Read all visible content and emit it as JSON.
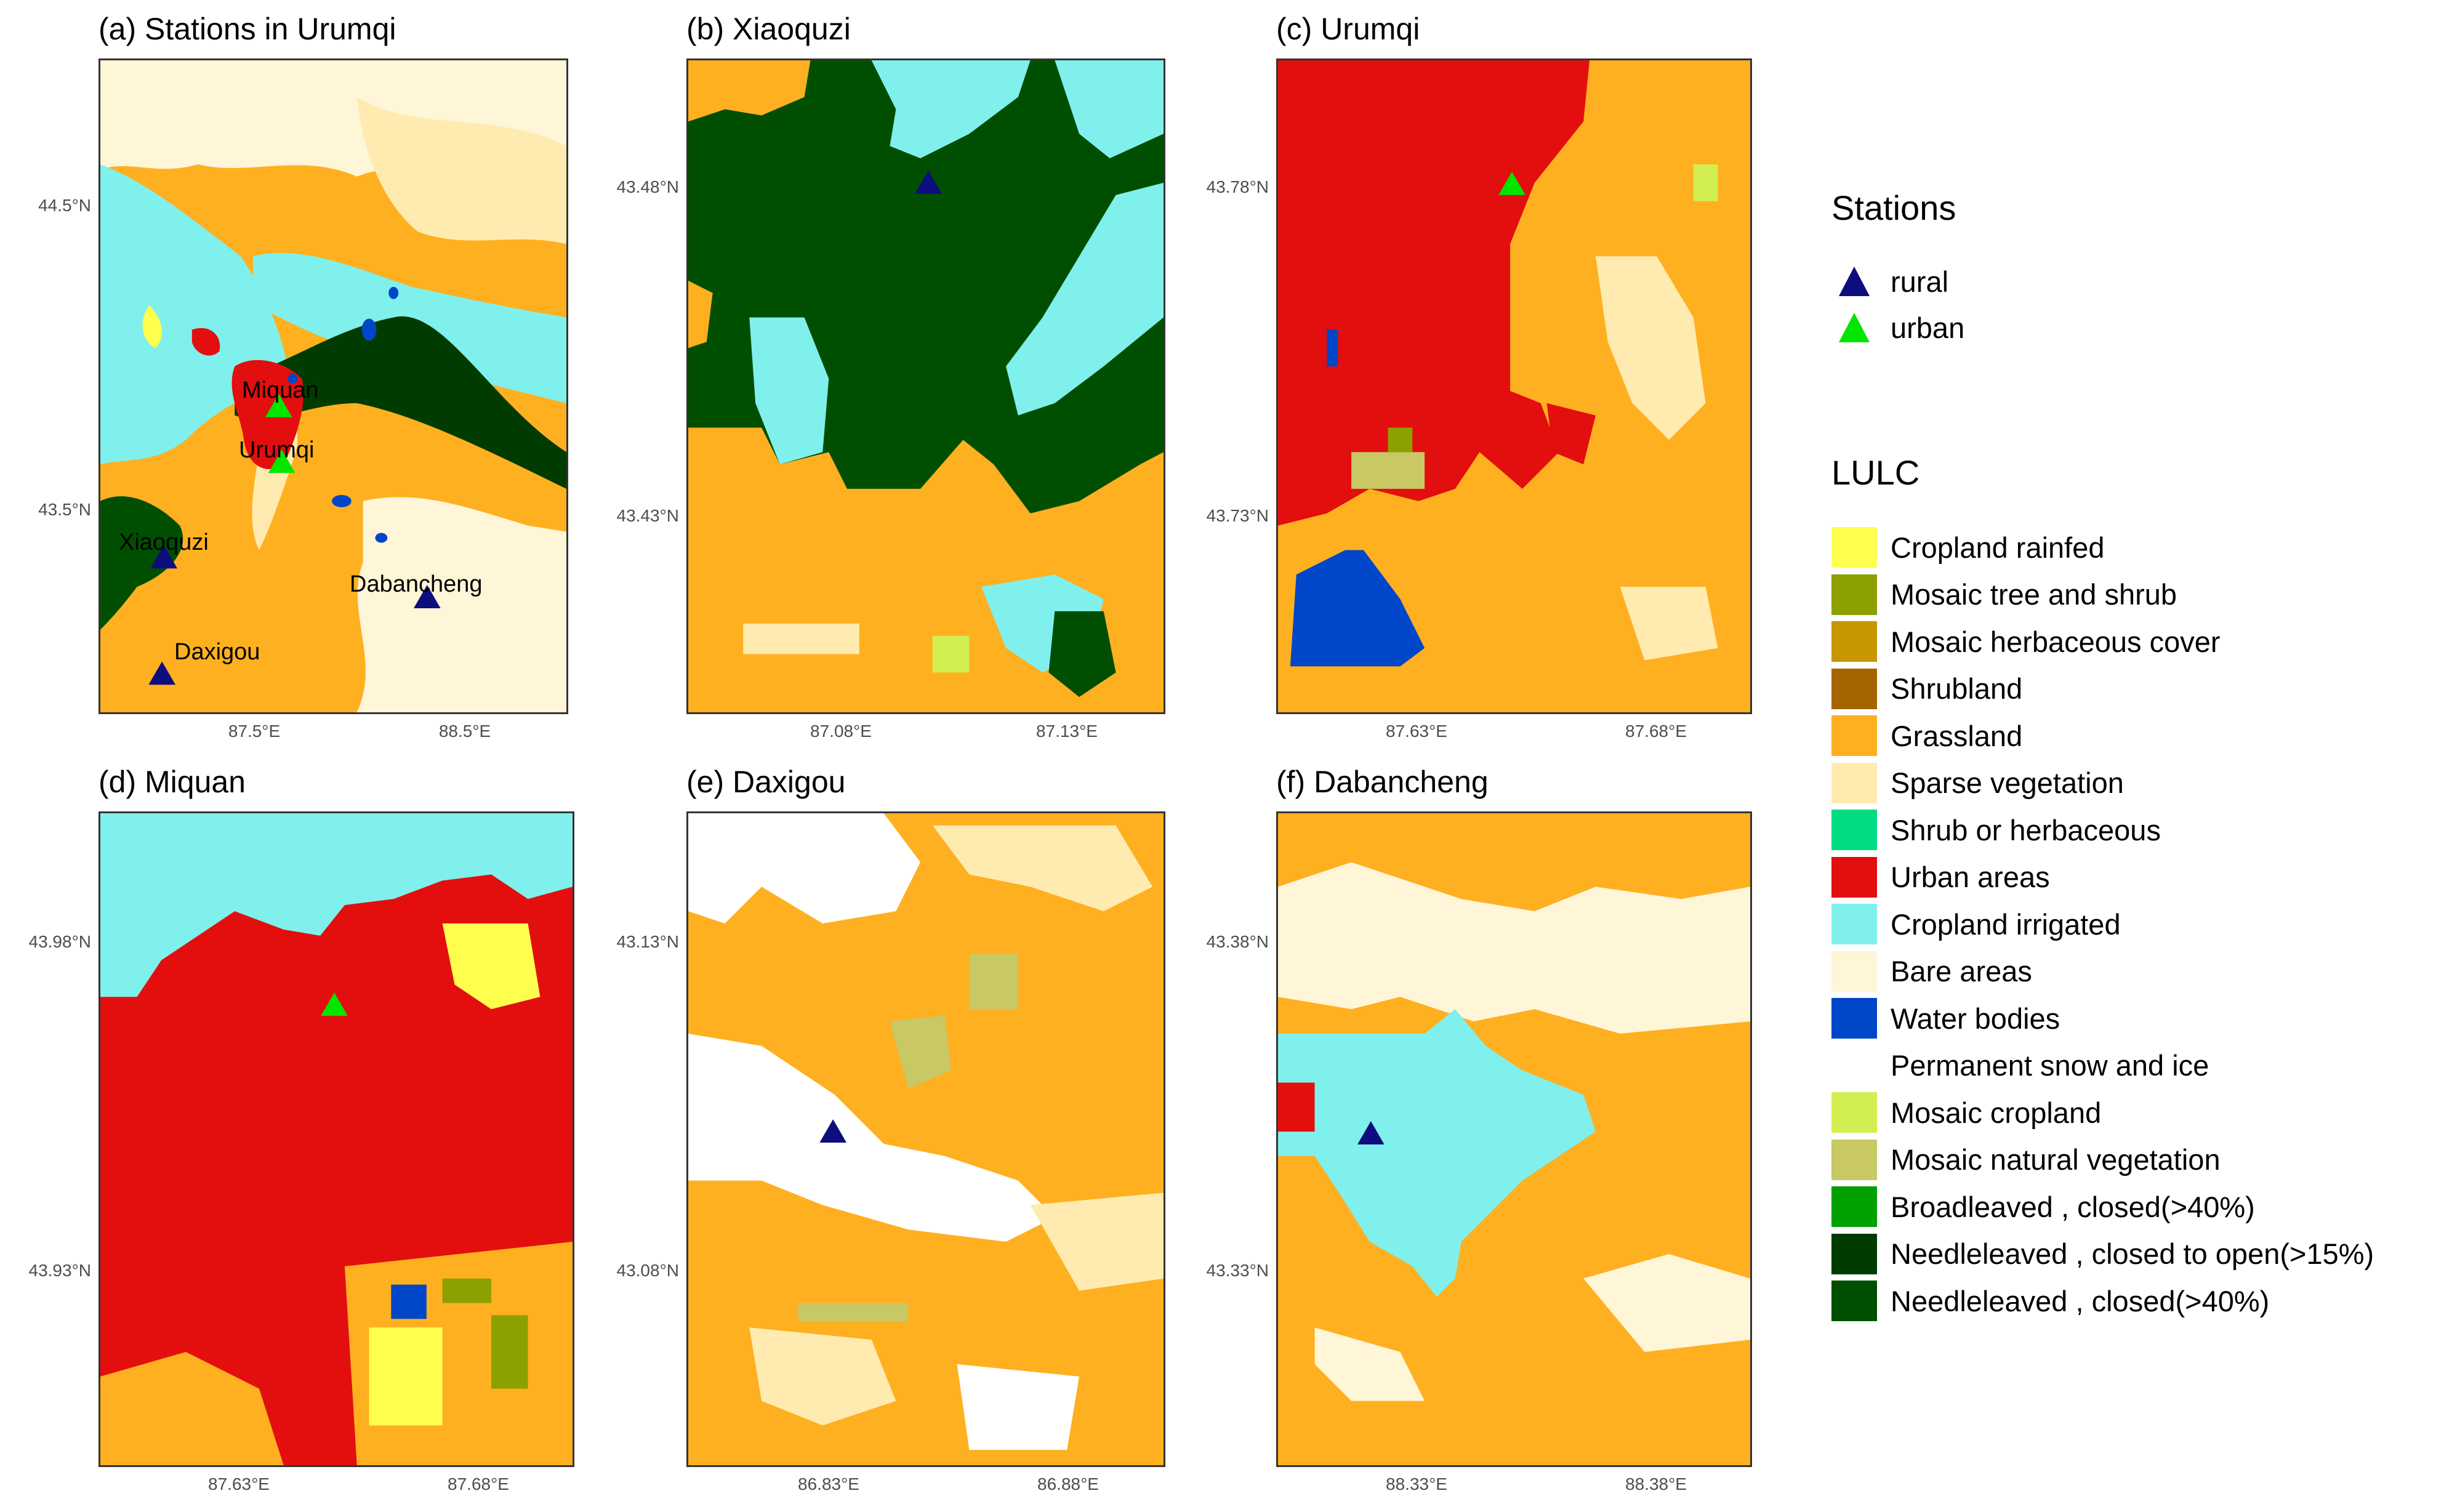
{
  "colors": {
    "cropland_rainfed": "#ffff4d",
    "mosaic_tree_shrub": "#8ca000",
    "mosaic_herbaceous": "#c89600",
    "shrubland": "#a66400",
    "grassland": "#ffb020",
    "sparse_vegetation": "#ffebaf",
    "shrub_herbaceous": "#00dc82",
    "urban": "#e30e0e",
    "cropland_irrigated": "#80f0ec",
    "bare": "#fff5d7",
    "water": "#0046c8",
    "snow": "#ffffff",
    "mosaic_cropland": "#d2ef52",
    "mosaic_natural": "#c8c864",
    "broadleaved": "#00a000",
    "needleleaved_open": "#003c00",
    "needleleaved_closed": "#004f00",
    "rural_marker": "#0d0d7d",
    "urban_marker": "#00e600"
  },
  "panels": {
    "a": {
      "title": "(a) Stations in Urumqi",
      "yticks": [
        "44.5°N",
        "43.5°N"
      ],
      "xticks": [
        "87.5°E",
        "88.5°E"
      ],
      "stations": [
        "Miquan",
        "Urumqi",
        "Xiaoquzi",
        "Dabancheng",
        "Daxigou"
      ]
    },
    "b": {
      "title": "(b) Xiaoquzi",
      "yticks": [
        "43.48°N",
        "43.43°N"
      ],
      "xticks": [
        "87.08°E",
        "87.13°E"
      ]
    },
    "c": {
      "title": "(c) Urumqi",
      "yticks": [
        "43.78°N",
        "43.73°N"
      ],
      "xticks": [
        "87.63°E",
        "87.68°E"
      ]
    },
    "d": {
      "title": "(d) Miquan",
      "yticks": [
        "43.98°N",
        "43.93°N"
      ],
      "xticks": [
        "87.63°E",
        "87.68°E"
      ]
    },
    "e": {
      "title": "(e) Daxigou",
      "yticks": [
        "43.13°N",
        "43.08°N"
      ],
      "xticks": [
        "86.83°E",
        "86.88°E"
      ]
    },
    "f": {
      "title": "(f) Dabancheng",
      "yticks": [
        "43.38°N",
        "43.33°N"
      ],
      "xticks": [
        "88.33°E",
        "88.38°E"
      ]
    }
  },
  "legend": {
    "stations_title": "Stations",
    "stations": [
      {
        "label": "rural",
        "color": "#0d0d7d"
      },
      {
        "label": "urban",
        "color": "#00e600"
      }
    ],
    "lulc_title": "LULC",
    "lulc": [
      {
        "label": "Cropland rainfed",
        "color": "#ffff4d"
      },
      {
        "label": "Mosaic tree and shrub",
        "color": "#8ca000"
      },
      {
        "label": "Mosaic herbaceous cover",
        "color": "#c89600"
      },
      {
        "label": "Shrubland",
        "color": "#a66400"
      },
      {
        "label": "Grassland",
        "color": "#ffb020"
      },
      {
        "label": "Sparse vegetation",
        "color": "#ffebaf"
      },
      {
        "label": "Shrub or herbaceous",
        "color": "#00dc82"
      },
      {
        "label": "Urban areas",
        "color": "#e30e0e"
      },
      {
        "label": "Cropland irrigated",
        "color": "#80f0ec"
      },
      {
        "label": "Bare areas",
        "color": "#fff5d7"
      },
      {
        "label": "Water bodies",
        "color": "#0046c8"
      },
      {
        "label": "Permanent snow and ice",
        "color": "#ffffff"
      },
      {
        "label": "Mosaic cropland",
        "color": "#d2ef52"
      },
      {
        "label": "Mosaic natural vegetation",
        "color": "#c8c864"
      },
      {
        "label": "Broadleaved , closed(>40%)",
        "color": "#00a000"
      },
      {
        "label": "Needleleaved , closed to open(>15%)",
        "color": "#003c00"
      },
      {
        "label": "Needleleaved , closed(>40%)",
        "color": "#004f00"
      }
    ]
  }
}
